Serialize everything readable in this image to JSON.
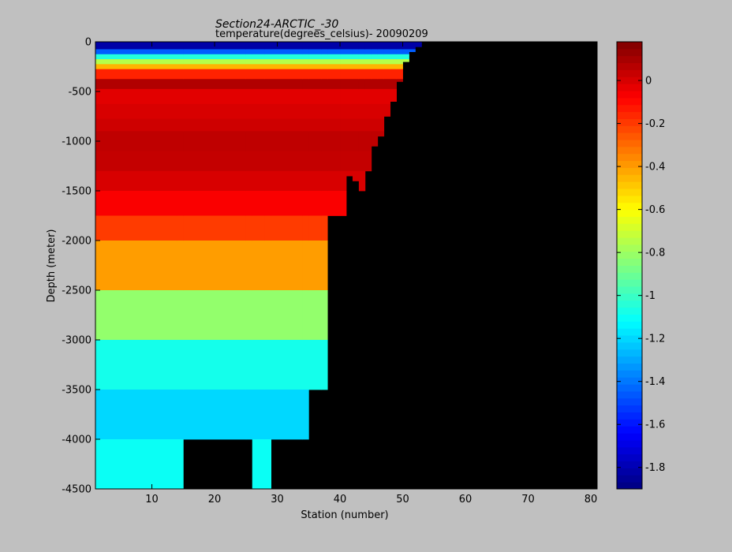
{
  "chart_data": {
    "type": "heatmap",
    "title": "Section24-ARCTIC_-30",
    "subtitle": "temperature(degrees_celsius)- 20090209",
    "xlabel": "Station (number)",
    "ylabel": "Depth (meter)",
    "xlim": [
      1,
      81
    ],
    "ylim": [
      -4500,
      0
    ],
    "x_ticks": [
      10,
      20,
      30,
      40,
      50,
      60,
      70,
      80
    ],
    "y_ticks": [
      0,
      -500,
      -1000,
      -1500,
      -2000,
      -2500,
      -3000,
      -3500,
      -4000,
      -4500
    ],
    "colorbar": {
      "label": "",
      "range": [
        -1.9,
        0.18
      ],
      "ticks": [
        0,
        -0.2,
        -0.4,
        -0.6,
        -0.8,
        -1,
        -1.2,
        -1.4,
        -1.6,
        -1.8
      ],
      "colormap": "jet"
    },
    "missing_color": "#000000",
    "depth_bins": [
      {
        "top": 0,
        "bottom": -75,
        "value": -1.82
      },
      {
        "top": -75,
        "bottom": -125,
        "value": -1.45
      },
      {
        "top": -125,
        "bottom": -175,
        "value": -1.05
      },
      {
        "top": -175,
        "bottom": -225,
        "value": -0.75
      },
      {
        "top": -225,
        "bottom": -275,
        "value": -0.45
      },
      {
        "top": -275,
        "bottom": -375,
        "value": -0.15
      },
      {
        "top": -375,
        "bottom": -475,
        "value": 0.08
      },
      {
        "top": -475,
        "bottom": -625,
        "value": -0.02
      },
      {
        "top": -625,
        "bottom": -775,
        "value": 0.0
      },
      {
        "top": -775,
        "bottom": -900,
        "value": 0.02
      },
      {
        "top": -900,
        "bottom": -1100,
        "value": 0.05
      },
      {
        "top": -1100,
        "bottom": -1300,
        "value": 0.04
      },
      {
        "top": -1300,
        "bottom": -1500,
        "value": 0.0
      },
      {
        "top": -1500,
        "bottom": -1750,
        "value": -0.07
      },
      {
        "top": -1750,
        "bottom": -2000,
        "value": -0.2
      },
      {
        "top": -2000,
        "bottom": -2500,
        "value": -0.4
      },
      {
        "top": -2500,
        "bottom": -3000,
        "value": -0.82
      },
      {
        "top": -3000,
        "bottom": -3500,
        "value": -1.08
      },
      {
        "top": -3500,
        "bottom": -4000,
        "value": -1.2
      },
      {
        "top": -4000,
        "bottom": -4500,
        "value": -1.1
      }
    ],
    "station_bottom_depth": [
      [
        1,
        4500
      ],
      [
        14,
        4500
      ],
      [
        15,
        4000
      ],
      [
        25,
        4000
      ],
      [
        26,
        4500
      ],
      [
        28,
        4500
      ],
      [
        29,
        4000
      ],
      [
        34,
        4000
      ],
      [
        35,
        3500
      ],
      [
        37,
        3500
      ],
      [
        38,
        1750
      ],
      [
        40,
        1750
      ],
      [
        41,
        1350
      ],
      [
        42,
        1400
      ],
      [
        43,
        1500
      ],
      [
        44,
        1300
      ],
      [
        45,
        1050
      ],
      [
        46,
        950
      ],
      [
        47,
        750
      ],
      [
        48,
        600
      ],
      [
        49,
        400
      ],
      [
        50,
        200
      ],
      [
        51,
        100
      ],
      [
        52,
        50
      ],
      [
        53,
        0
      ]
    ]
  }
}
